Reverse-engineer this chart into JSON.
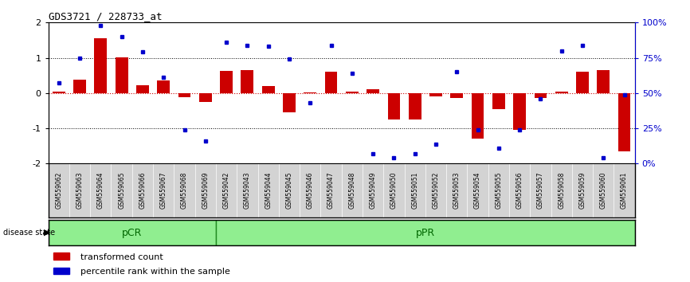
{
  "title": "GDS3721 / 228733_at",
  "samples": [
    "GSM559062",
    "GSM559063",
    "GSM559064",
    "GSM559065",
    "GSM559066",
    "GSM559067",
    "GSM559068",
    "GSM559069",
    "GSM559042",
    "GSM559043",
    "GSM559044",
    "GSM559045",
    "GSM559046",
    "GSM559047",
    "GSM559048",
    "GSM559049",
    "GSM559050",
    "GSM559051",
    "GSM559052",
    "GSM559053",
    "GSM559054",
    "GSM559055",
    "GSM559056",
    "GSM559057",
    "GSM559058",
    "GSM559059",
    "GSM559060",
    "GSM559061"
  ],
  "bar_values": [
    0.05,
    0.38,
    1.55,
    1.02,
    0.22,
    0.35,
    -0.12,
    -0.25,
    0.62,
    0.65,
    0.2,
    -0.55,
    0.02,
    0.6,
    0.05,
    0.12,
    -0.75,
    -0.75,
    -0.1,
    -0.15,
    -1.3,
    -0.45,
    -1.05,
    -0.15,
    0.05,
    0.6,
    0.65,
    -1.65
  ],
  "blue_values_pct": [
    57,
    75,
    98,
    90,
    79,
    61,
    24,
    16,
    86,
    84,
    83,
    74,
    43,
    84,
    64,
    7,
    4,
    7,
    14,
    65,
    24,
    11,
    24,
    46,
    80,
    84,
    4,
    49
  ],
  "pCR_count": 8,
  "bar_color": "#cc0000",
  "blue_color": "#0000cc",
  "zero_line_color": "#cc0000",
  "dotted_line_color": "#000000",
  "pCR_color": "#90ee90",
  "pPR_color": "#90ee90",
  "pCR_label": "pCR",
  "pPR_label": "pPR",
  "ylim": [
    -2,
    2
  ],
  "yticks": [
    -2,
    -1,
    0,
    1,
    2
  ],
  "y2ticks_pct": [
    0,
    25,
    50,
    75,
    100
  ],
  "y2ticklabels": [
    "0%",
    "25%",
    "50%",
    "75%",
    "100%"
  ],
  "legend_bar": "transformed count",
  "legend_blue": "percentile rank within the sample",
  "label_bg": "#d3d3d3"
}
